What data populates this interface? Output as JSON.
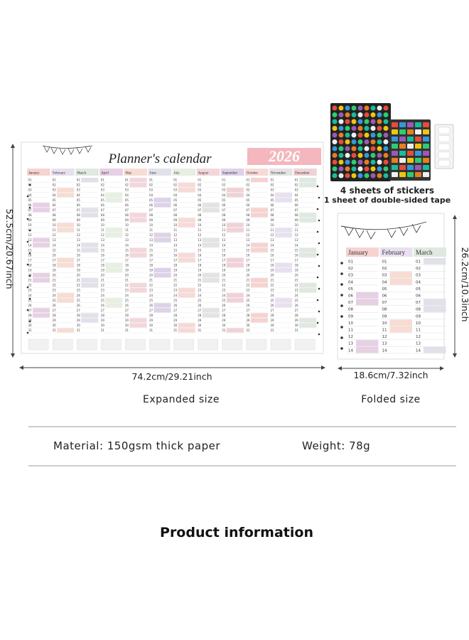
{
  "poster": {
    "title": "Planner's calendar",
    "year": "2026",
    "months": [
      "January",
      "February",
      "March",
      "April",
      "May",
      "June",
      "July",
      "August",
      "September",
      "October",
      "November",
      "December"
    ],
    "days": [
      "01",
      "02",
      "03",
      "04",
      "05",
      "06",
      "07",
      "08",
      "09",
      "10",
      "11",
      "12",
      "13",
      "14",
      "15",
      "16",
      "17",
      "18",
      "19",
      "20",
      "21",
      "22",
      "23",
      "24",
      "25",
      "26",
      "27",
      "28",
      "29",
      "30",
      "31"
    ]
  },
  "stickers": {
    "line1": "4 sheets of stickers",
    "line2": "1 sheet of double-sided tape"
  },
  "folded": {
    "months": [
      "January",
      "February",
      "March"
    ],
    "days": [
      "01",
      "02",
      "03",
      "04",
      "05",
      "06",
      "07",
      "08",
      "09",
      "10",
      "11",
      "12",
      "13",
      "14"
    ]
  },
  "dimensions": {
    "expanded_height": "52.5cm/20.67inch",
    "expanded_width": "74.2cm/29.21inch",
    "expanded_label": "Expanded size",
    "folded_height": "26.2cm/10.3inch",
    "folded_width": "18.6cm/7.32inch",
    "folded_label": "Folded size"
  },
  "info": {
    "material": "Material: 150gsm thick paper",
    "weight": "Weight: 78g",
    "heading": "Product information"
  }
}
